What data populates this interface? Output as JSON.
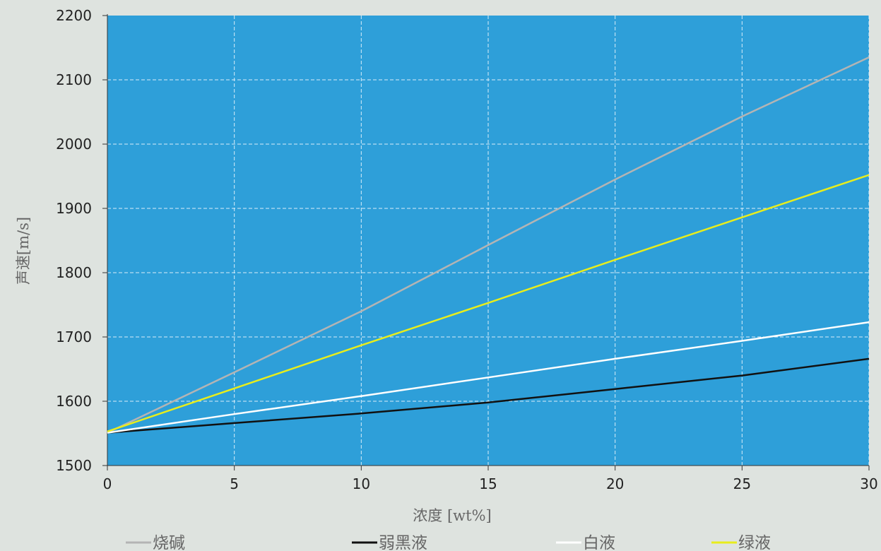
{
  "chart_data": {
    "type": "line",
    "xlabel": "浓度 [wt%]",
    "ylabel": "声速[m/s]",
    "xlim": [
      0,
      30
    ],
    "ylim": [
      1500,
      2200
    ],
    "xticks": [
      0,
      5,
      10,
      15,
      20,
      25,
      30
    ],
    "yticks": [
      1500,
      1600,
      1700,
      1800,
      1900,
      2000,
      2100,
      2200
    ],
    "grid": true,
    "legend_position": "bottom",
    "plot_background": "#2e9fd9",
    "series": [
      {
        "name": "烧碱",
        "color": "#b4b4b4",
        "x": [
          0,
          5,
          10,
          15,
          20,
          25,
          30
        ],
        "y": [
          1551,
          1645,
          1740,
          1843,
          1945,
          2043,
          2135
        ]
      },
      {
        "name": "弱黑液",
        "color": "#111111",
        "x": [
          0,
          5,
          10,
          15,
          20,
          25,
          30
        ],
        "y": [
          1551,
          1566,
          1581,
          1598,
          1619,
          1640,
          1666
        ]
      },
      {
        "name": "白液",
        "color": "#ffffff",
        "x": [
          0,
          5,
          10,
          15,
          20,
          25,
          30
        ],
        "y": [
          1551,
          1580,
          1608,
          1637,
          1666,
          1694,
          1723
        ]
      },
      {
        "name": "绿液",
        "color": "#e8ed1c",
        "x": [
          0,
          5,
          10,
          15,
          20,
          25,
          30
        ],
        "y": [
          1553,
          1620,
          1687,
          1753,
          1820,
          1886,
          1952
        ]
      }
    ]
  }
}
